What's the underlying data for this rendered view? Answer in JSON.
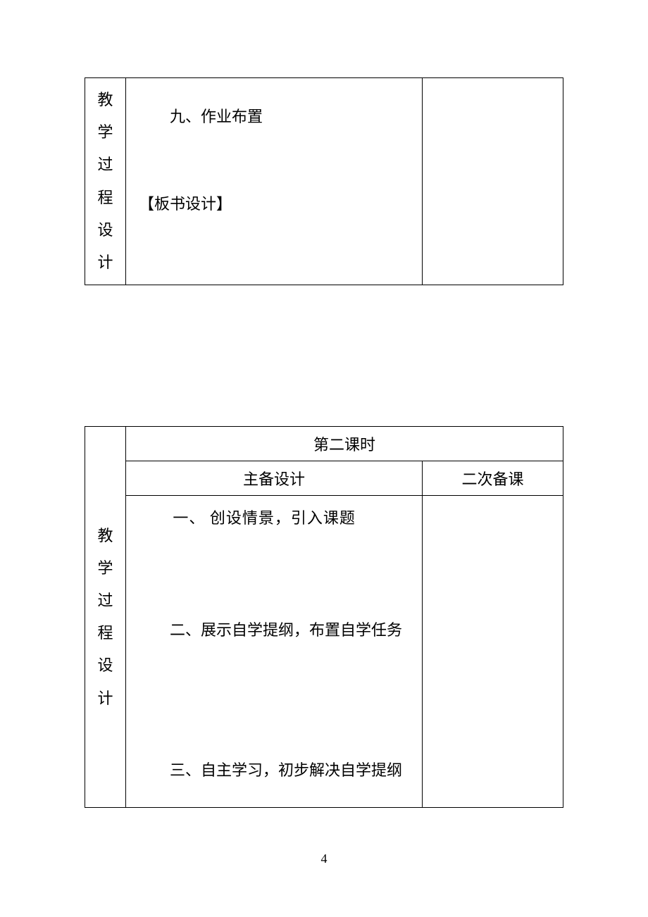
{
  "table1": {
    "sideLabel": "教学过程设计",
    "item9": "九、作业布置",
    "board": "【板书设计】"
  },
  "table2": {
    "sideLabel": "教学过程设计",
    "periodTitle": "第二课时",
    "col1Header": "主备设计",
    "col2Header": "二次备课",
    "item1": "一、 创设情景，引入课题",
    "item2": "二、展示自学提纲，布置自学任务",
    "item3": "三、自主学习，初步解决自学提纲"
  },
  "pageNumber": "4",
  "colors": {
    "background": "#ffffff",
    "text": "#000000",
    "border": "#000000"
  },
  "typography": {
    "fontFamily": "SimSun",
    "bodyFontSize": 22,
    "pageNumberFontSize": 18
  }
}
